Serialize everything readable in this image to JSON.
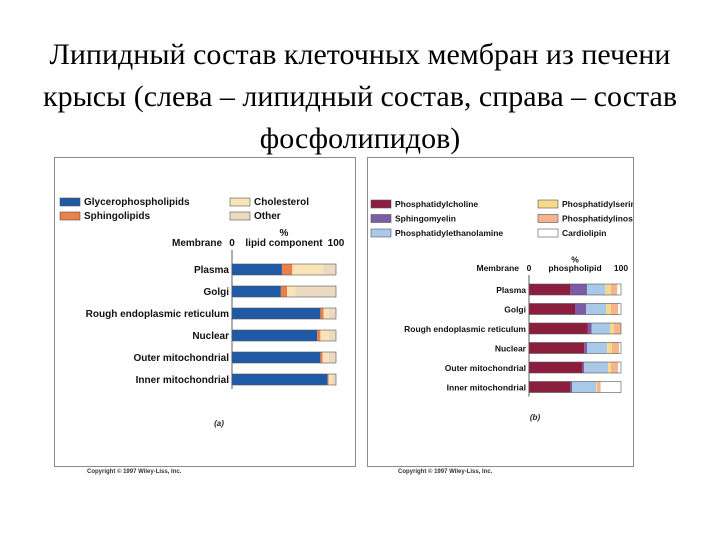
{
  "slide": {
    "title": "Липидный состав клеточных мембран из печени крысы (слева – липидный состав, справа – состав фосфолипидов)"
  },
  "colors": {
    "glycerophospholipids": "#1f5aa6",
    "sphingolipids": "#e8824a",
    "cholesterol": "#fbe3b8",
    "other": "#ecd9c2",
    "phosphatidylcholine": "#8b1e3f",
    "sphingomyelin": "#7d5ba6",
    "phosphatidylethanolamine": "#a9c9e8",
    "phosphatidylserine": "#f7d98a",
    "phosphatidylinositol": "#f3b48e",
    "cardiolipin": "#ffffff"
  },
  "chart_data": [
    {
      "type": "bar",
      "orientation": "horizontal",
      "stacked": true,
      "panel_label": "(a)",
      "category_header": "Membrane",
      "axis_title": "% lipid component",
      "axis_title_line1": "%",
      "axis_title_line2": "lipid component",
      "xlim": [
        0,
        100
      ],
      "tick_labels": [
        "0",
        "100"
      ],
      "legend_placement": "top",
      "categories": [
        "Plasma",
        "Golgi",
        "Rough endoplasmic reticulum",
        "Nuclear",
        "Outer mitochondrial",
        "Inner mitochondrial"
      ],
      "series": [
        {
          "name": "Glycerophospholipids",
          "color_key": "glycerophospholipids",
          "values": [
            48,
            47,
            85,
            82,
            85,
            92
          ]
        },
        {
          "name": "Sphingolipids",
          "color_key": "sphingolipids",
          "values": [
            10,
            6,
            3,
            3,
            2,
            1
          ]
        },
        {
          "name": "Cholesterol",
          "color_key": "cholesterol",
          "values": [
            30,
            8,
            5,
            8,
            6,
            3
          ]
        },
        {
          "name": "Other",
          "color_key": "other",
          "values": [
            12,
            39,
            7,
            7,
            7,
            4
          ]
        }
      ],
      "copyright": "Copyright © 1997 Wiley-Liss, Inc."
    },
    {
      "type": "bar",
      "orientation": "horizontal",
      "stacked": true,
      "panel_label": "(b)",
      "category_header": "Membrane",
      "axis_title": "% phospholipid",
      "axis_title_line1": "%",
      "axis_title_line2": "phospholipid",
      "xlim": [
        0,
        100
      ],
      "tick_labels": [
        "0",
        "100"
      ],
      "legend_placement": "top",
      "categories": [
        "Plasma",
        "Golgi",
        "Rough endoplasmic reticulum",
        "Nuclear",
        "Outer mitochondrial",
        "Inner mitochondrial"
      ],
      "series": [
        {
          "name": "Phosphatidylcholine",
          "color_key": "phosphatidylcholine",
          "values": [
            45,
            50,
            64,
            60,
            58,
            45
          ]
        },
        {
          "name": "Sphingomyelin",
          "color_key": "sphingomyelin",
          "values": [
            18,
            12,
            4,
            3,
            2,
            2
          ]
        },
        {
          "name": "Phosphatidylethanolamine",
          "color_key": "phosphatidylethanolamine",
          "values": [
            20,
            22,
            20,
            22,
            26,
            26
          ]
        },
        {
          "name": "Phosphatidylserine",
          "color_key": "phosphatidylserine",
          "values": [
            6,
            5,
            4,
            5,
            3,
            1
          ]
        },
        {
          "name": "Phosphatidylinositol",
          "color_key": "phosphatidylinositol",
          "values": [
            7,
            8,
            8,
            8,
            8,
            4
          ]
        },
        {
          "name": "Cardiolipin",
          "color_key": "cardiolipin",
          "values": [
            4,
            3,
            0,
            2,
            3,
            22
          ]
        }
      ],
      "copyright": "Copyright © 1997 Wiley-Liss, Inc."
    }
  ]
}
